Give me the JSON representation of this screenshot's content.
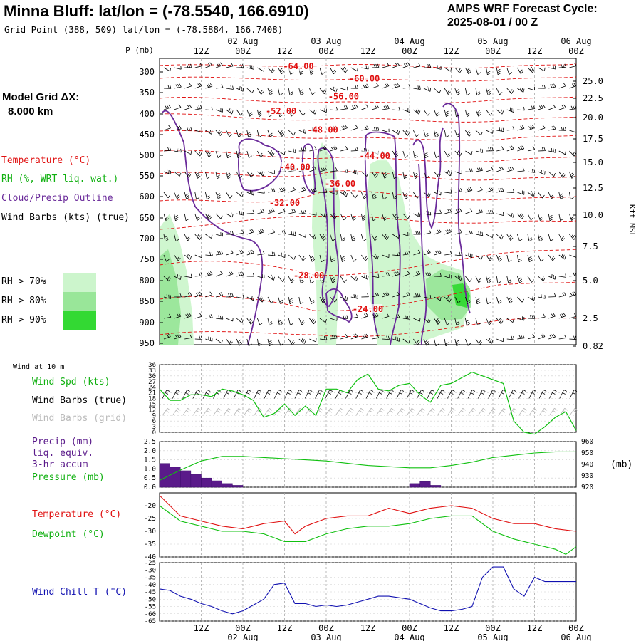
{
  "header": {
    "station": "Minna Bluff:  lat/lon = (-78.5540, 166.6910)",
    "grid_point": "Grid Point (388, 509) lat/lon = (-78.5884, 166.7408)",
    "forecast_label": "AMPS WRF Forecast Cycle:",
    "forecast_cycle": "2025-08-01 / 00  Z"
  },
  "legend": {
    "model_grid_label": "Model Grid ΔX:",
    "model_grid_value": "8.000 km",
    "temperature": "Temperature (°C)",
    "rh": "RH (%, WRT liq. wat.)",
    "cloud": "Cloud/Precip Outline",
    "wind_barbs": "Wind Barbs (kts) (true)",
    "rh70": "RH > 70%",
    "rh80": "RH > 80%",
    "rh90": "RH > 90%",
    "wind_at_10m": "Wind at 10 m",
    "wind_spd": "Wind Spd (kts)",
    "wind_barbs_true": "Wind Barbs (true)",
    "wind_barbs_grid": "Wind Barbs (grid)",
    "precip": "Precip (mm)",
    "liq_equiv": "liq. equiv.",
    "accum": "3-hr accum",
    "pressure": "Pressure (mb)",
    "pressure_unit": "(mb)",
    "temperature2": "Temperature (°C)",
    "dewpoint": "Dewpoint (°C)",
    "wind_chill": "Wind Chill T (°C)",
    "p_axis_label": "P (mb)",
    "kft_label": "Kft MSL"
  },
  "colors": {
    "temperature": "#e01010",
    "green": "#10c010",
    "purple": "#6a2a9a",
    "grid_barbs": "#b8b8b8",
    "blue": "#1010b0",
    "rh70": "#ccf5cc",
    "rh80": "#99e699",
    "rh90": "#33d933",
    "precip_bar": "#5a1a8a"
  },
  "time_axis": {
    "top_labels": [
      "02 Aug",
      "03 Aug",
      "04 Aug",
      "05 Aug",
      "06 Aug"
    ],
    "hour_labels": [
      "12Z",
      "00Z",
      "12Z",
      "00Z",
      "12Z",
      "00Z",
      "12Z",
      "00Z",
      "12Z",
      "00Z"
    ],
    "bottom_hour_labels": [
      "12Z",
      "00Z",
      "12Z",
      "00Z",
      "12Z",
      "00Z",
      "12Z",
      "00Z",
      "12Z",
      "00Z"
    ],
    "bottom_day_labels": [
      "02 Aug",
      "03 Aug",
      "04 Aug",
      "05 Aug",
      "06 Aug"
    ]
  },
  "chart_data": [
    {
      "type": "area",
      "name": "cross-section",
      "pressure_ticks": [
        300,
        350,
        400,
        450,
        500,
        550,
        600,
        650,
        700,
        750,
        800,
        850,
        900,
        950
      ],
      "height_ticks_kft": [
        "25.0",
        "22.5",
        "20.0",
        "17.5",
        "15.0",
        "12.5",
        "10.0",
        "7.5",
        "5.0",
        "2.5",
        "0.82"
      ],
      "ylim": [
        300,
        950
      ],
      "x_hours": [
        0,
        120
      ],
      "temperature_labels": [
        {
          "text": "-64.00",
          "hour": 40,
          "p": 293
        },
        {
          "text": "-60.00",
          "hour": 59,
          "p": 323
        },
        {
          "text": "-56.00",
          "hour": 53,
          "p": 366
        },
        {
          "text": "-52.00",
          "hour": 35,
          "p": 400
        },
        {
          "text": "-48.00",
          "hour": 47,
          "p": 446
        },
        {
          "text": "-44.00",
          "hour": 62,
          "p": 509
        },
        {
          "text": "-40.00",
          "hour": 39,
          "p": 535
        },
        {
          "text": "-36.00",
          "hour": 52,
          "p": 576
        },
        {
          "text": "-32.00",
          "hour": 36,
          "p": 622
        },
        {
          "text": "-28.00",
          "hour": 43,
          "p": 795
        },
        {
          "text": "-24.00",
          "hour": 60,
          "p": 875
        }
      ],
      "wind_barbs": "true",
      "cloud_outline": "true"
    },
    {
      "type": "line",
      "name": "surface-wind",
      "ylim": [
        0,
        36
      ],
      "yticks": [
        0,
        3,
        6,
        9,
        12,
        15,
        18,
        21,
        24,
        27,
        30,
        33,
        36
      ],
      "series": [
        {
          "name": "Wind Spd (kts)",
          "x": [
            0,
            3,
            6,
            9,
            12,
            15,
            18,
            21,
            24,
            27,
            30,
            33,
            36,
            39,
            42,
            45,
            48,
            51,
            54,
            57,
            60,
            63,
            66,
            69,
            72,
            75,
            78,
            81,
            84,
            87,
            90,
            93,
            96,
            99,
            102,
            105,
            108,
            111,
            114,
            117,
            120
          ],
          "y": [
            23,
            17,
            17,
            20,
            20,
            19,
            23,
            22,
            20,
            17,
            8,
            10,
            15,
            9,
            14,
            9,
            23,
            23,
            21,
            28,
            31,
            23,
            22,
            25,
            26,
            20,
            16,
            25,
            26,
            29,
            32,
            30,
            28,
            26,
            6,
            0,
            -1,
            3,
            8,
            11,
            1
          ]
        }
      ]
    },
    {
      "type": "bar",
      "name": "precip-pressure",
      "ylim_precip": [
        0,
        2.5
      ],
      "yticks_precip": [
        "0.0",
        "0.5",
        "1.0",
        "1.5",
        "2.0",
        "2.5"
      ],
      "ylim_pressure": [
        920,
        960
      ],
      "yticks_pressure": [
        920,
        930,
        940,
        950,
        960
      ],
      "precip_bars": [
        {
          "hour": 3,
          "value": 1.3
        },
        {
          "hour": 6,
          "value": 1.1
        },
        {
          "hour": 9,
          "value": 0.9
        },
        {
          "hour": 12,
          "value": 0.7
        },
        {
          "hour": 15,
          "value": 0.5
        },
        {
          "hour": 18,
          "value": 0.35
        },
        {
          "hour": 21,
          "value": 0.2
        },
        {
          "hour": 24,
          "value": 0.1
        },
        {
          "hour": 75,
          "value": 0.2
        },
        {
          "hour": 78,
          "value": 0.3
        },
        {
          "hour": 81,
          "value": 0.1
        }
      ],
      "series": [
        {
          "name": "Pressure (mb)",
          "x": [
            0,
            6,
            12,
            18,
            24,
            30,
            36,
            42,
            48,
            54,
            60,
            66,
            72,
            78,
            84,
            90,
            96,
            102,
            108,
            114,
            120
          ],
          "y": [
            926,
            935,
            943,
            947,
            947,
            946,
            945,
            944,
            943,
            941,
            939,
            938,
            937,
            937,
            939,
            942,
            946,
            948,
            950,
            951,
            951
          ]
        }
      ]
    },
    {
      "type": "line",
      "name": "temp-dewpoint",
      "ylim": [
        -40,
        -15
      ],
      "yticks": [
        -40,
        -35,
        -30,
        -25,
        -20
      ],
      "series": [
        {
          "name": "Temperature (°C)",
          "x": [
            0,
            6,
            12,
            18,
            24,
            30,
            36,
            39,
            42,
            48,
            54,
            60,
            66,
            72,
            75,
            78,
            84,
            90,
            96,
            102,
            108,
            114,
            120
          ],
          "y": [
            -16,
            -24,
            -26,
            -28,
            -29,
            -27,
            -26,
            -31,
            -28,
            -25,
            -24,
            -24,
            -21,
            -23,
            -22,
            -21,
            -20,
            -21,
            -25,
            -27,
            -27,
            -29,
            -30
          ]
        },
        {
          "name": "Dewpoint (°C)",
          "x": [
            0,
            6,
            12,
            18,
            24,
            30,
            36,
            42,
            48,
            54,
            60,
            66,
            72,
            78,
            84,
            90,
            96,
            102,
            108,
            114,
            117,
            120
          ],
          "y": [
            -20,
            -26,
            -28,
            -30,
            -30,
            -31,
            -34,
            -34,
            -31,
            -29,
            -28,
            -28,
            -27,
            -25,
            -24,
            -24,
            -30,
            -33,
            -35,
            -37,
            -39,
            -36
          ]
        }
      ]
    },
    {
      "type": "line",
      "name": "wind-chill",
      "ylim": [
        -65,
        -25
      ],
      "yticks": [
        -65,
        -60,
        -55,
        -50,
        -45,
        -40,
        -35,
        -30,
        -25
      ],
      "series": [
        {
          "name": "Wind Chill T (°C)",
          "x": [
            0,
            3,
            6,
            9,
            12,
            15,
            18,
            21,
            24,
            27,
            30,
            33,
            36,
            39,
            42,
            45,
            48,
            51,
            54,
            57,
            60,
            63,
            66,
            69,
            72,
            75,
            78,
            81,
            84,
            87,
            90,
            93,
            96,
            99,
            102,
            105,
            108,
            111,
            114,
            117,
            120
          ],
          "y": [
            -43,
            -44,
            -48,
            -50,
            -53,
            -55,
            -58,
            -60,
            -58,
            -54,
            -50,
            -40,
            -39,
            -53,
            -53,
            -55,
            -54,
            -55,
            -54,
            -52,
            -50,
            -48,
            -48,
            -49,
            -50,
            -53,
            -56,
            -58,
            -58,
            -57,
            -55,
            -35,
            -28,
            -28,
            -43,
            -48,
            -35,
            -38,
            -38,
            -38,
            -38
          ]
        }
      ]
    }
  ]
}
